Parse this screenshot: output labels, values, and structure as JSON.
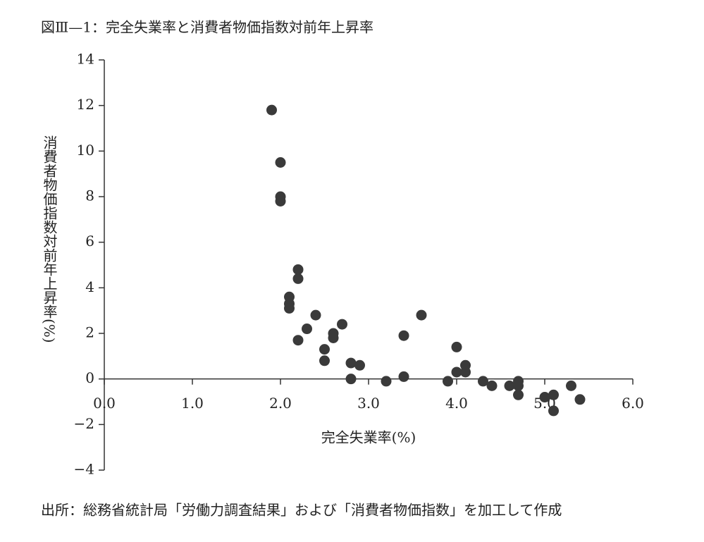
{
  "chart_data": {
    "type": "scatter",
    "title": "図Ⅲ—1：完全失業率と消費者物価指数対前年上昇率",
    "x_label": "完全失業率(%)",
    "y_label": "消費者物価指数対前年上昇率(%)",
    "source": "出所：総務省統計局「労働力調査結果」および「消費者物価指数」を加工して作成",
    "color": "#3a3a3a",
    "x": [
      1.9,
      2.0,
      2.0,
      2.0,
      2.2,
      2.2,
      2.1,
      2.1,
      2.1,
      2.4,
      2.3,
      2.2,
      2.6,
      2.6,
      2.7,
      2.5,
      2.5,
      2.8,
      2.9,
      2.8,
      3.2,
      3.4,
      3.4,
      3.6,
      3.9,
      4.0,
      4.0,
      4.1,
      4.1,
      4.3,
      4.4,
      4.6,
      4.7,
      4.7,
      4.7,
      5.0,
      5.1,
      5.1,
      5.3,
      5.4
    ],
    "values": [
      11.8,
      9.5,
      8.0,
      7.8,
      4.8,
      4.4,
      3.6,
      3.3,
      3.1,
      2.8,
      2.2,
      1.7,
      2.0,
      1.8,
      2.4,
      1.3,
      0.8,
      0.7,
      0.6,
      0.0,
      -0.1,
      0.1,
      1.9,
      2.8,
      -0.1,
      1.4,
      0.3,
      0.6,
      0.3,
      -0.1,
      -0.3,
      -0.3,
      -0.1,
      -0.3,
      -0.7,
      -0.8,
      -0.7,
      -1.4,
      -0.3,
      -0.9
    ],
    "xlim": [
      0,
      6
    ],
    "xticks": [
      {
        "value": 0,
        "label": "0.0"
      },
      {
        "value": 1,
        "label": "1.0"
      },
      {
        "value": 2,
        "label": "2.0"
      },
      {
        "value": 3,
        "label": "3.0"
      },
      {
        "value": 4,
        "label": "4.0"
      },
      {
        "value": 5,
        "label": "5.0"
      },
      {
        "value": 6,
        "label": "6.0"
      }
    ],
    "ylim": [
      -4,
      14
    ],
    "yticks": [
      {
        "value": -4,
        "label": "−4"
      },
      {
        "value": -2,
        "label": "−2"
      },
      0,
      2,
      4,
      6,
      8,
      10,
      12,
      14
    ]
  }
}
